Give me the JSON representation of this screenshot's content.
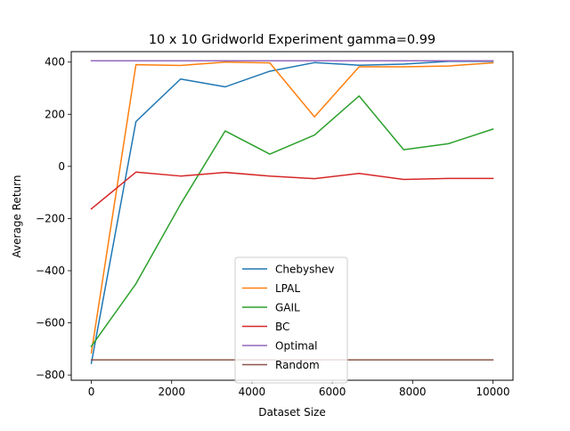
{
  "chart_data": {
    "type": "line",
    "title": "10 x 10 Gridworld Experiment gamma=0.99",
    "xlabel": "Dataset Size",
    "ylabel": "Average Return",
    "xlim": [
      -500,
      10500
    ],
    "ylim": [
      -820,
      440
    ],
    "xticks": [
      0,
      2000,
      4000,
      6000,
      8000,
      10000
    ],
    "yticks": [
      -800,
      -600,
      -400,
      -200,
      0,
      200,
      400
    ],
    "xtick_labels": [
      "0",
      "2000",
      "4000",
      "6000",
      "8000",
      "10000"
    ],
    "ytick_labels": [
      "−800",
      "−600",
      "−400",
      "−200",
      "0",
      "200",
      "400"
    ],
    "grid": false,
    "legend_position": "lower center",
    "x": [
      0,
      1111,
      2222,
      3333,
      4444,
      5556,
      6667,
      7778,
      8889,
      10000
    ],
    "series": [
      {
        "name": "Chebyshev",
        "color": "#1f77b4",
        "values": [
          -755,
          172,
          335,
          305,
          365,
          398,
          388,
          392,
          403,
          403
        ]
      },
      {
        "name": "LPAL",
        "color": "#ff7f0e",
        "values": [
          -715,
          390,
          387,
          400,
          397,
          190,
          382,
          382,
          385,
          397
        ]
      },
      {
        "name": "GAIL",
        "color": "#2ca02c",
        "values": [
          -690,
          -450,
          -145,
          136,
          47,
          120,
          270,
          64,
          87,
          143
        ]
      },
      {
        "name": "BC",
        "color": "#d62728",
        "values": [
          -163,
          -22,
          -37,
          -23,
          -37,
          -47,
          -27,
          -50,
          -46,
          -46
        ]
      },
      {
        "name": "Optimal",
        "color": "#9467bd",
        "values": [
          405,
          405,
          405,
          405,
          405,
          405,
          405,
          405,
          405,
          405
        ]
      },
      {
        "name": "Random",
        "color": "#8c564b",
        "values": [
          -742,
          -742,
          -742,
          -742,
          -742,
          -742,
          -742,
          -742,
          -742,
          -742
        ]
      }
    ]
  }
}
